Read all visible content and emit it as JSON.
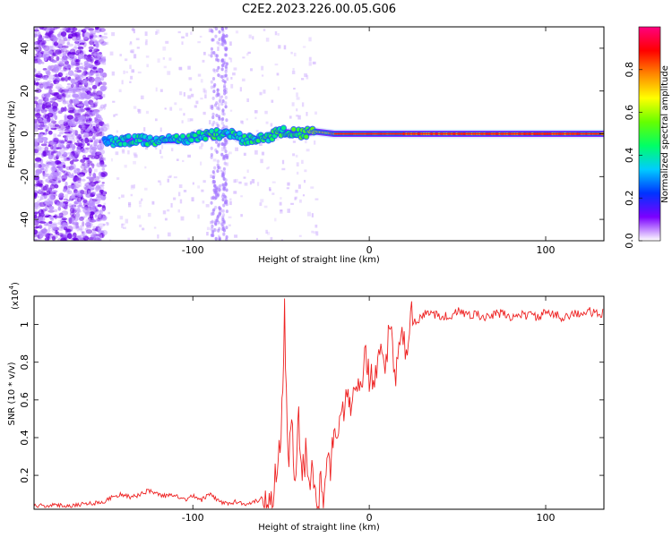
{
  "figure_title": "C2E2.2023.226.00.05.G06",
  "chart_data": [
    {
      "type": "heatmap",
      "title": "C2E2.2023.226.00.05.G06",
      "xlabel": "Height of straight line (km)",
      "ylabel": "Frequency (Hz)",
      "xlim": [
        -190,
        133
      ],
      "ylim": [
        -50,
        50
      ],
      "x_ticks": [
        -100,
        0,
        100
      ],
      "y_ticks": [
        -40,
        -20,
        0,
        20,
        40
      ],
      "grid": false,
      "colorbar": {
        "label": "Normalized spectral amplitude",
        "range": [
          0,
          1
        ],
        "ticks": [
          0.0,
          0.2,
          0.4,
          0.6,
          0.8
        ],
        "tick_labels": [
          "0.0",
          "0.2",
          "0.4",
          "0.6",
          "0.8"
        ],
        "colormap": [
          "#ffffff",
          "#7b00ff",
          "#0033ff",
          "#00ccff",
          "#00ff66",
          "#66ff00",
          "#ffff00",
          "#ff8800",
          "#ff0000",
          "#ff007f"
        ]
      },
      "signal_track": [
        {
          "x": -150,
          "freq": -4,
          "amplitude": 0.35
        },
        {
          "x": -140,
          "freq": -3,
          "amplitude": 0.45
        },
        {
          "x": -130,
          "freq": -3,
          "amplitude": 0.45
        },
        {
          "x": -120,
          "freq": -3,
          "amplitude": 0.45
        },
        {
          "x": -110,
          "freq": -3,
          "amplitude": 0.45
        },
        {
          "x": -100,
          "freq": -2,
          "amplitude": 0.45
        },
        {
          "x": -90,
          "freq": 0,
          "amplitude": 0.5
        },
        {
          "x": -80,
          "freq": 0,
          "amplitude": 0.45
        },
        {
          "x": -70,
          "freq": -3,
          "amplitude": 0.45
        },
        {
          "x": -60,
          "freq": -2,
          "amplitude": 0.5
        },
        {
          "x": -50,
          "freq": 1,
          "amplitude": 0.5
        },
        {
          "x": -40,
          "freq": 0,
          "amplitude": 0.55
        },
        {
          "x": -30,
          "freq": 1,
          "amplitude": 0.7
        },
        {
          "x": -20,
          "freq": 0,
          "amplitude": 0.8
        },
        {
          "x": -10,
          "freq": 0,
          "amplitude": 0.85
        },
        {
          "x": 0,
          "freq": 0,
          "amplitude": 0.85
        },
        {
          "x": 10,
          "freq": 0,
          "amplitude": 0.85
        },
        {
          "x": 20,
          "freq": 0,
          "amplitude": 0.9
        },
        {
          "x": 40,
          "freq": 0,
          "amplitude": 0.9
        },
        {
          "x": 60,
          "freq": 0,
          "amplitude": 0.9
        },
        {
          "x": 80,
          "freq": 0,
          "amplitude": 0.9
        },
        {
          "x": 100,
          "freq": 0,
          "amplitude": 0.9
        },
        {
          "x": 120,
          "freq": 0,
          "amplitude": 0.9
        },
        {
          "x": 133,
          "freq": 0,
          "amplitude": 0.9
        }
      ]
    },
    {
      "type": "line",
      "xlabel": "Height of straight line (km)",
      "ylabel": "SNR (10 * v/v)",
      "y_multiplier_label": "(x10",
      "y_multiplier_exp": "4",
      "xlim": [
        -190,
        133
      ],
      "ylim": [
        0.02,
        1.15
      ],
      "x_ticks": [
        -100,
        0,
        100
      ],
      "y_ticks": [
        0.2,
        0.4,
        0.6,
        0.8,
        1.0
      ],
      "grid": false,
      "series": [
        {
          "color": "#ee2222",
          "x": [
            -190,
            -180,
            -170,
            -160,
            -150,
            -145,
            -140,
            -135,
            -130,
            -125,
            -120,
            -115,
            -110,
            -105,
            -100,
            -95,
            -90,
            -85,
            -80,
            -75,
            -70,
            -65,
            -60,
            -55,
            -50,
            -48,
            -46,
            -44,
            -42,
            -40,
            -38,
            -36,
            -34,
            -32,
            -30,
            -28,
            -26,
            -24,
            -22,
            -20,
            -18,
            -15,
            -12,
            -10,
            -8,
            -5,
            -2,
            0,
            3,
            6,
            9,
            12,
            15,
            18,
            21,
            24,
            27,
            30,
            35,
            40,
            45,
            50,
            55,
            60,
            65,
            70,
            75,
            80,
            85,
            90,
            95,
            100,
            105,
            110,
            115,
            120,
            125,
            130,
            133
          ],
          "y": [
            0.04,
            0.04,
            0.04,
            0.05,
            0.06,
            0.09,
            0.1,
            0.08,
            0.1,
            0.12,
            0.1,
            0.09,
            0.1,
            0.07,
            0.09,
            0.07,
            0.1,
            0.06,
            0.05,
            0.06,
            0.05,
            0.06,
            0.08,
            0.1,
            0.4,
            1.07,
            0.3,
            0.55,
            0.2,
            0.5,
            0.15,
            0.35,
            0.08,
            0.2,
            0.05,
            0.12,
            0.06,
            0.35,
            0.25,
            0.45,
            0.4,
            0.55,
            0.6,
            0.5,
            0.7,
            0.65,
            0.85,
            0.72,
            0.7,
            0.88,
            0.8,
            1.0,
            0.7,
            0.95,
            0.85,
            1.05,
            1.0,
            1.05,
            1.06,
            1.05,
            1.04,
            1.07,
            1.05,
            1.06,
            1.03,
            1.05,
            1.06,
            1.04,
            1.05,
            1.05,
            1.04,
            1.06,
            1.05,
            1.04,
            1.06,
            1.05,
            1.07,
            1.05,
            1.06
          ]
        }
      ]
    }
  ]
}
